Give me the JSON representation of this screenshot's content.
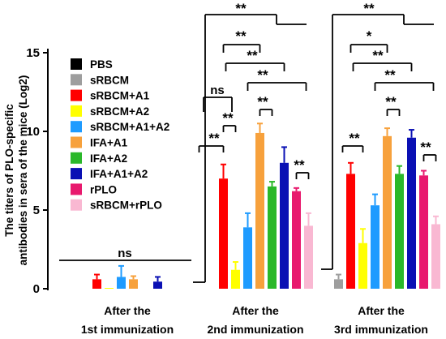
{
  "chart_data": {
    "type": "bar",
    "title": "",
    "ylabel": "The titers of PLO-specific antibodies in sera of the mice (Log2)",
    "xlabel": "",
    "ylim": [
      0,
      15
    ],
    "yticks": [
      "0",
      "5",
      "10",
      "15"
    ],
    "categories": [
      "After the 1st immunization",
      "After the 2nd immunization",
      "After the 3rd immunization"
    ],
    "series": [
      {
        "name": "PBS",
        "color": "#000000",
        "values": [
          0,
          0,
          0
        ],
        "errors": [
          0,
          0,
          0
        ]
      },
      {
        "name": "sRBCM",
        "color": "#9e9e9e",
        "values": [
          0,
          0,
          0.6
        ],
        "errors": [
          0,
          0,
          0.3
        ]
      },
      {
        "name": "sRBCM+A1",
        "color": "#ff0000",
        "values": [
          0.6,
          7.0,
          7.3
        ],
        "errors": [
          0.3,
          0.9,
          0.7
        ]
      },
      {
        "name": "sRBCM+A2",
        "color": "#ffff00",
        "values": [
          0.05,
          1.2,
          2.9
        ],
        "errors": [
          0,
          0.5,
          0.9
        ]
      },
      {
        "name": "sRBCM+A1+A2",
        "color": "#1e9bff",
        "values": [
          0.75,
          3.9,
          5.3
        ],
        "errors": [
          0.7,
          0.9,
          0.7
        ]
      },
      {
        "name": "IFA+A1",
        "color": "#f7a13c",
        "values": [
          0.6,
          9.9,
          9.7
        ],
        "errors": [
          0.2,
          0.6,
          0.5
        ]
      },
      {
        "name": "IFA+A2",
        "color": "#2ab82a",
        "values": [
          0,
          6.5,
          7.3
        ],
        "errors": [
          0,
          0.3,
          0.5
        ]
      },
      {
        "name": "IFA+A1+A2",
        "color": "#0a10b4",
        "values": [
          0.45,
          8.0,
          9.6
        ],
        "errors": [
          0.3,
          1.0,
          0.5
        ]
      },
      {
        "name": "rPLO",
        "color": "#e8196e",
        "values": [
          0,
          6.2,
          7.2
        ],
        "errors": [
          0,
          0.2,
          0.3
        ]
      },
      {
        "name": "sRBCM+rPLO",
        "color": "#f9b8d2",
        "values": [
          0,
          4.0,
          4.1
        ],
        "errors": [
          0,
          0.8,
          0.5
        ]
      }
    ],
    "group_labels": [
      [
        "After the",
        "1st immunization"
      ],
      [
        "After the",
        "2nd immunization"
      ],
      [
        "After the",
        "3rd immunization"
      ]
    ],
    "significance": {
      "ns_label": "ns",
      "star2_label": "**",
      "star1_label": "*"
    },
    "legend_position": "top-left"
  }
}
